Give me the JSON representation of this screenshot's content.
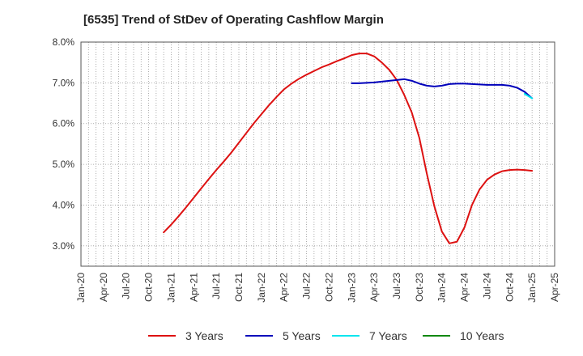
{
  "chart_data": {
    "type": "line",
    "title": "[6535]  Trend of StDev of Operating Cashflow Margin",
    "xlabel": "",
    "ylabel": "",
    "x_ticks": [
      "Jan-20",
      "Apr-20",
      "Jul-20",
      "Oct-20",
      "Jan-21",
      "Apr-21",
      "Jul-21",
      "Oct-21",
      "Jan-22",
      "Apr-22",
      "Jul-22",
      "Oct-22",
      "Jan-23",
      "Apr-23",
      "Jul-23",
      "Oct-23",
      "Jan-24",
      "Apr-24",
      "Jul-24",
      "Oct-24",
      "Jan-25",
      "Apr-25"
    ],
    "y_ticks": [
      "3.0%",
      "4.0%",
      "5.0%",
      "6.0%",
      "7.0%",
      "8.0%"
    ],
    "ylim": [
      2.5,
      8.0
    ],
    "grid": true,
    "legend_position": "bottom",
    "series": [
      {
        "name": "3 Years",
        "color": "#dd1111",
        "x": [
          "2020-12",
          "2021-01",
          "2021-02",
          "2021-03",
          "2021-04",
          "2021-05",
          "2021-06",
          "2021-07",
          "2021-08",
          "2021-09",
          "2021-10",
          "2021-11",
          "2021-12",
          "2022-01",
          "2022-02",
          "2022-03",
          "2022-04",
          "2022-05",
          "2022-06",
          "2022-07",
          "2022-08",
          "2022-09",
          "2022-10",
          "2022-11",
          "2022-12",
          "2023-01",
          "2023-02",
          "2023-03",
          "2023-04",
          "2023-05",
          "2023-06",
          "2023-07",
          "2023-08",
          "2023-09",
          "2023-10",
          "2023-11",
          "2023-12",
          "2024-01",
          "2024-02",
          "2024-03",
          "2024-04",
          "2024-05",
          "2024-06",
          "2024-07",
          "2024-08",
          "2024-09",
          "2024-10",
          "2024-11",
          "2024-12",
          "2025-01"
        ],
        "values": [
          3.33,
          3.52,
          3.73,
          3.95,
          4.18,
          4.41,
          4.64,
          4.86,
          5.07,
          5.29,
          5.53,
          5.77,
          6.01,
          6.23,
          6.45,
          6.65,
          6.84,
          6.98,
          7.1,
          7.2,
          7.29,
          7.38,
          7.45,
          7.53,
          7.6,
          7.68,
          7.72,
          7.72,
          7.65,
          7.5,
          7.32,
          7.07,
          6.7,
          6.27,
          5.65,
          4.77,
          3.97,
          3.35,
          3.06,
          3.1,
          3.45,
          4.0,
          4.38,
          4.62,
          4.75,
          4.83,
          4.86,
          4.87,
          4.86,
          4.84
        ]
      },
      {
        "name": "5 Years",
        "color": "#0000bb",
        "x": [
          "2023-01",
          "2023-02",
          "2023-03",
          "2023-04",
          "2023-05",
          "2023-06",
          "2023-07",
          "2023-08",
          "2023-09",
          "2023-10",
          "2023-11",
          "2023-12",
          "2024-01",
          "2024-02",
          "2024-03",
          "2024-04",
          "2024-05",
          "2024-06",
          "2024-07",
          "2024-08",
          "2024-09",
          "2024-10",
          "2024-11",
          "2024-12",
          "2025-01"
        ],
        "values": [
          6.99,
          6.99,
          7.0,
          7.01,
          7.03,
          7.05,
          7.07,
          7.09,
          7.05,
          6.98,
          6.93,
          6.91,
          6.93,
          6.97,
          6.98,
          6.98,
          6.97,
          6.96,
          6.95,
          6.95,
          6.95,
          6.93,
          6.88,
          6.78,
          6.62
        ]
      },
      {
        "name": "7 Years",
        "color": "#00e5ee",
        "x": [
          "2024-12",
          "2025-01"
        ],
        "values": [
          6.73,
          6.62
        ]
      },
      {
        "name": "10 Years",
        "color": "#118811",
        "x": [],
        "values": []
      }
    ]
  }
}
